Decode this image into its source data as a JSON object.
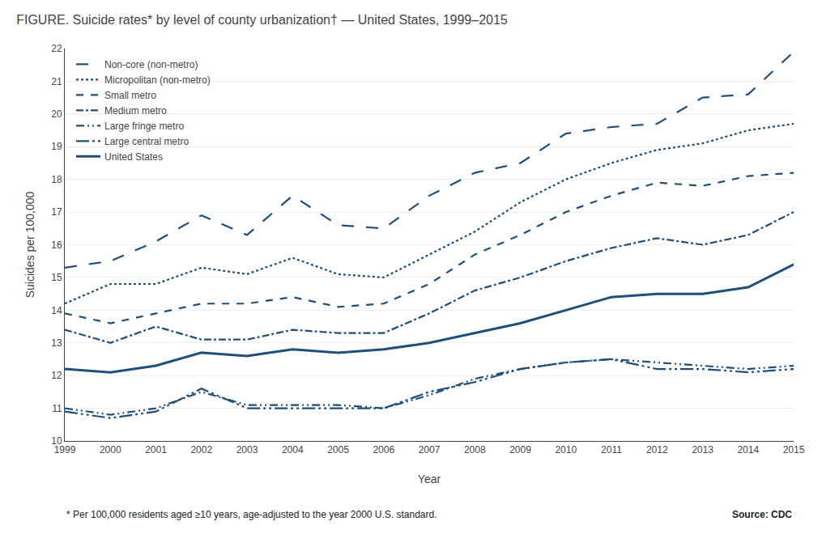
{
  "chart_data": {
    "type": "line",
    "title": "FIGURE. Suicide rates* by level of county urbanization† — United States, 1999–2015",
    "x_label": "Year",
    "y_label": "Suicides per 100,000",
    "annotations": [
      "* Per 100,000 residents aged ≥10 years, age-adjusted to the year 2000 U.S. standard.",
      "Source: CDC"
    ],
    "x": [
      1999,
      2000,
      2001,
      2002,
      2003,
      2004,
      2005,
      2006,
      2007,
      2008,
      2009,
      2010,
      2011,
      2012,
      2013,
      2014,
      2015
    ],
    "color": "#1f4e79",
    "series": [
      {
        "name": "Non-core (non-metro)",
        "line_style": "longdash",
        "values": [
          15.3,
          15.5,
          16.1,
          16.9,
          16.3,
          17.5,
          16.6,
          16.5,
          17.5,
          18.2,
          18.5,
          19.4,
          19.6,
          19.7,
          20.5,
          20.6,
          21.9
        ]
      },
      {
        "name": "Micropolitan (non-metro)",
        "line_style": "dot",
        "values": [
          14.2,
          14.8,
          14.8,
          15.3,
          15.1,
          15.6,
          15.1,
          15.0,
          15.7,
          16.4,
          17.3,
          18.0,
          18.5,
          18.9,
          19.1,
          19.5,
          19.7
        ]
      },
      {
        "name": "Small metro",
        "line_style": "dash",
        "values": [
          13.9,
          13.6,
          13.9,
          14.2,
          14.2,
          14.4,
          14.1,
          14.2,
          14.8,
          15.7,
          16.3,
          17.0,
          17.5,
          17.9,
          17.8,
          18.1,
          18.2
        ]
      },
      {
        "name": "Medium metro",
        "line_style": "dashdot",
        "values": [
          13.4,
          13.0,
          13.5,
          13.1,
          13.1,
          13.4,
          13.3,
          13.3,
          13.9,
          14.6,
          15.0,
          15.5,
          15.9,
          16.2,
          16.0,
          16.3,
          17.0
        ]
      },
      {
        "name": "Large fringe metro",
        "line_style": "dashdotdot",
        "values": [
          11.0,
          10.8,
          11.0,
          11.5,
          11.1,
          11.1,
          11.1,
          11.0,
          11.4,
          11.9,
          12.2,
          12.4,
          12.5,
          12.4,
          12.3,
          12.2,
          12.3
        ]
      },
      {
        "name": "Large central metro",
        "line_style": "longdashdotdot",
        "values": [
          10.9,
          10.7,
          10.9,
          11.6,
          11.0,
          11.0,
          11.0,
          11.0,
          11.5,
          11.8,
          12.2,
          12.4,
          12.5,
          12.2,
          12.2,
          12.1,
          12.2
        ]
      },
      {
        "name": "United States",
        "line_style": "solid",
        "values": [
          12.2,
          12.1,
          12.3,
          12.7,
          12.6,
          12.8,
          12.7,
          12.8,
          13.0,
          13.3,
          13.6,
          14.0,
          14.4,
          14.5,
          14.5,
          14.7,
          15.4
        ]
      }
    ],
    "xlim": [
      1999,
      2015
    ],
    "xticks": [
      1999,
      2000,
      2001,
      2002,
      2003,
      2004,
      2005,
      2006,
      2007,
      2008,
      2009,
      2010,
      2011,
      2012,
      2013,
      2014,
      2015
    ],
    "ylim": [
      10,
      22
    ],
    "yticks": [
      10,
      11,
      12,
      13,
      14,
      15,
      16,
      17,
      18,
      19,
      20,
      21,
      22
    ],
    "grid": true,
    "legend": "upper left"
  }
}
